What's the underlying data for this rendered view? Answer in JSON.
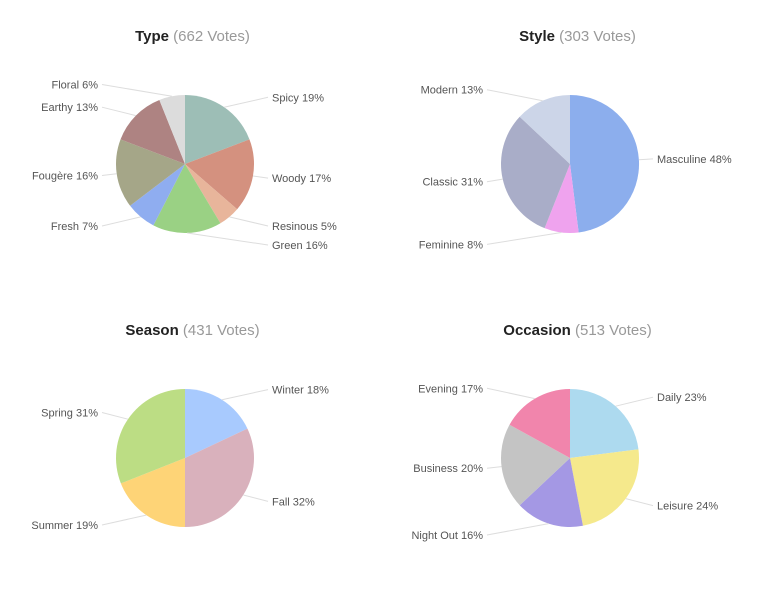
{
  "chart_data": [
    {
      "type": "pie",
      "title": "Type",
      "votes": "(662 Votes)",
      "series": [
        {
          "label": "Spicy",
          "pct_label": "19%",
          "value": 19,
          "color": "#9dbeb6"
        },
        {
          "label": "Woody",
          "pct_label": "17%",
          "value": 17,
          "color": "#d4917f"
        },
        {
          "label": "Resinous",
          "pct_label": "5%",
          "value": 5,
          "color": "#e8b59b"
        },
        {
          "label": "Green",
          "pct_label": "16%",
          "value": 16,
          "color": "#9ad184"
        },
        {
          "label": "Fresh",
          "pct_label": "7%",
          "value": 7,
          "color": "#8fadf0"
        },
        {
          "label": "Fougère",
          "pct_label": "16%",
          "value": 16,
          "color": "#a5a688"
        },
        {
          "label": "Earthy",
          "pct_label": "13%",
          "value": 13,
          "color": "#ae8382"
        },
        {
          "label": "Floral",
          "pct_label": "6%",
          "value": 6,
          "color": "#dcdcdc"
        }
      ]
    },
    {
      "type": "pie",
      "title": "Style",
      "votes": "(303 Votes)",
      "series": [
        {
          "label": "Masculine",
          "pct_label": "48%",
          "value": 48,
          "color": "#8caeed"
        },
        {
          "label": "Feminine",
          "pct_label": "8%",
          "value": 8,
          "color": "#efa3ee"
        },
        {
          "label": "Classic",
          "pct_label": "31%",
          "value": 31,
          "color": "#a9adc8"
        },
        {
          "label": "Modern",
          "pct_label": "13%",
          "value": 13,
          "color": "#ccd5e8"
        }
      ]
    },
    {
      "type": "pie",
      "title": "Season",
      "votes": "(431 Votes)",
      "series": [
        {
          "label": "Winter",
          "pct_label": "18%",
          "value": 18,
          "color": "#a8cafe"
        },
        {
          "label": "Fall",
          "pct_label": "32%",
          "value": 32,
          "color": "#d9b1bc"
        },
        {
          "label": "Summer",
          "pct_label": "19%",
          "value": 19,
          "color": "#fed477"
        },
        {
          "label": "Spring",
          "pct_label": "31%",
          "value": 31,
          "color": "#bcdd84"
        }
      ]
    },
    {
      "type": "pie",
      "title": "Occasion",
      "votes": "(513 Votes)",
      "series": [
        {
          "label": "Daily",
          "pct_label": "23%",
          "value": 23,
          "color": "#addaef"
        },
        {
          "label": "Leisure",
          "pct_label": "24%",
          "value": 24,
          "color": "#f5e98c"
        },
        {
          "label": "Night Out",
          "pct_label": "16%",
          "value": 16,
          "color": "#a498e4"
        },
        {
          "label": "Business",
          "pct_label": "20%",
          "value": 20,
          "color": "#c4c4c4"
        },
        {
          "label": "Evening",
          "pct_label": "17%",
          "value": 17,
          "color": "#f185ac"
        }
      ]
    }
  ]
}
